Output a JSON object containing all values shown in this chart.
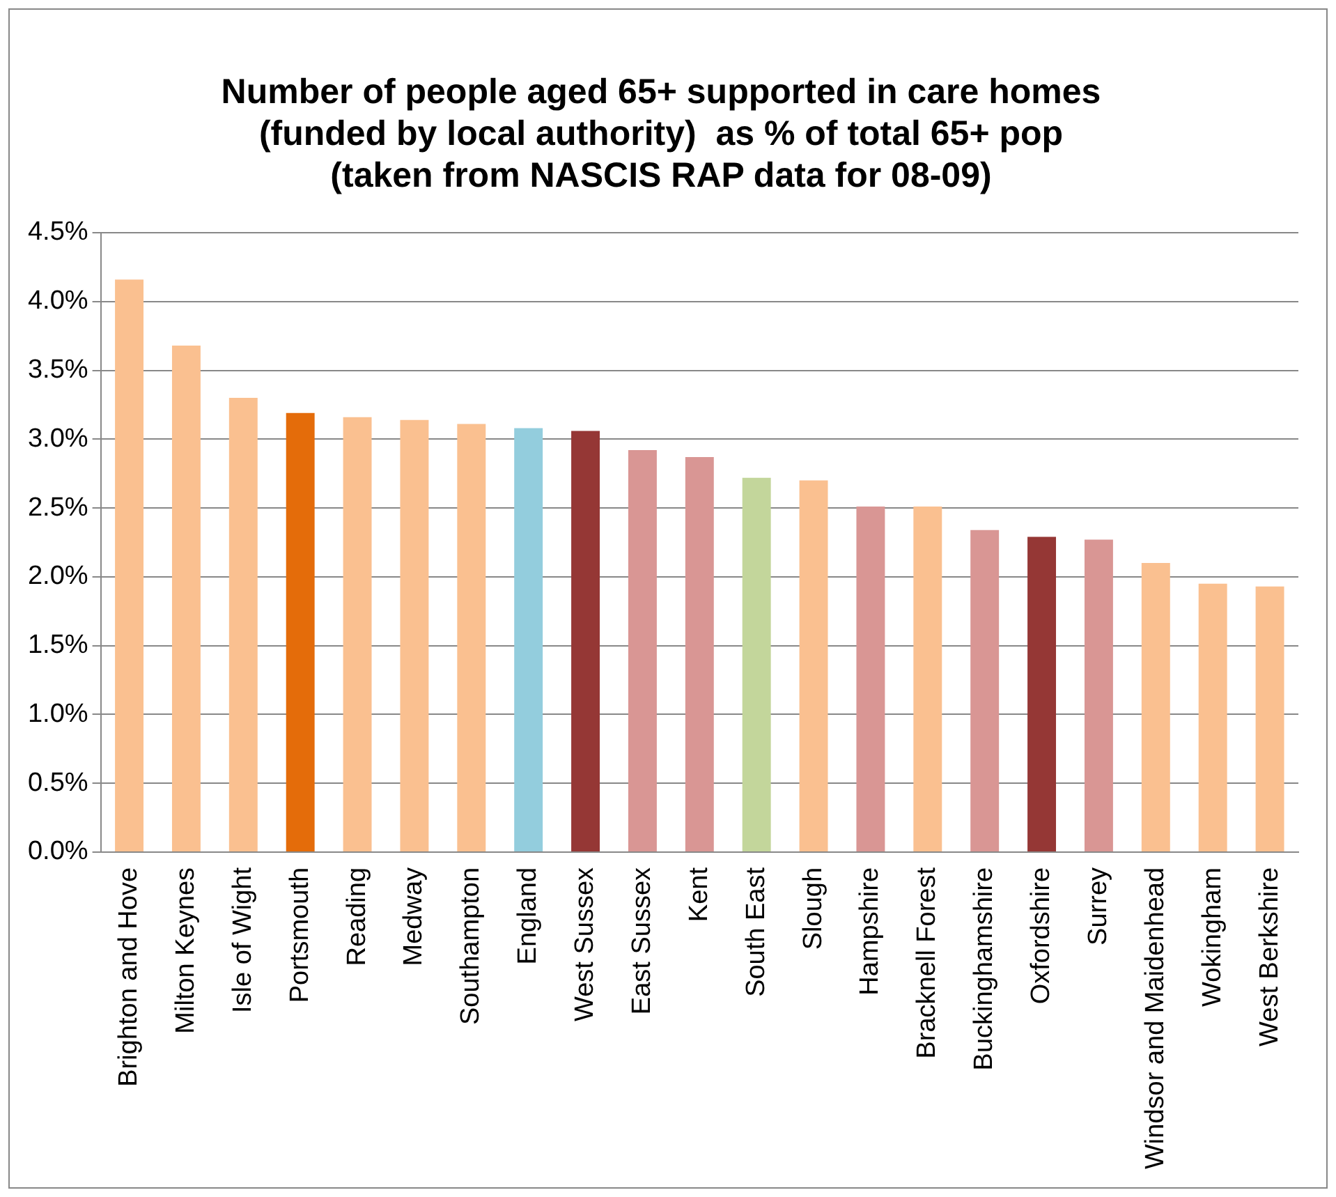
{
  "chart_data": {
    "type": "bar",
    "title": "Number of people aged 65+ supported in care homes\n(funded by local authority)  as % of total 65+ pop\n(taken from NASCIS RAP data for 08-09)",
    "categories": [
      "Brighton and Hove",
      "Milton Keynes",
      "Isle of Wight",
      "Portsmouth",
      "Reading",
      "Medway",
      "Southampton",
      "England",
      "West Sussex",
      "East Sussex",
      "Kent",
      "South East",
      "Slough",
      "Hampshire",
      "Bracknell Forest",
      "Buckinghamshire",
      "Oxfordshire",
      "Surrey",
      "Windsor and Maidenhead",
      "Wokingham",
      "West Berkshire"
    ],
    "values": [
      4.16,
      3.68,
      3.3,
      3.19,
      3.16,
      3.14,
      3.11,
      3.08,
      3.06,
      2.92,
      2.87,
      2.72,
      2.7,
      2.51,
      2.51,
      2.34,
      2.29,
      2.27,
      2.1,
      1.95,
      1.93
    ],
    "colors": [
      "#fac090",
      "#fac090",
      "#fac090",
      "#e46c0a",
      "#fac090",
      "#fac090",
      "#fac090",
      "#93cddd",
      "#953735",
      "#d99694",
      "#d99694",
      "#c3d69b",
      "#fac090",
      "#d99694",
      "#fac090",
      "#d99694",
      "#953735",
      "#d99694",
      "#fac090",
      "#fac090",
      "#fac090"
    ],
    "ylim": [
      0,
      4.5
    ],
    "yticks": [
      {
        "value": 0,
        "label": "0.0%"
      },
      {
        "value": 0.5,
        "label": "0.5%"
      },
      {
        "value": 1,
        "label": "1.0%"
      },
      {
        "value": 1.5,
        "label": "1.5%"
      },
      {
        "value": 2,
        "label": "2.0%"
      },
      {
        "value": 2.5,
        "label": "2.5%"
      },
      {
        "value": 3,
        "label": "3.0%"
      },
      {
        "value": 3.5,
        "label": "3.5%"
      },
      {
        "value": 4,
        "label": "4.0%"
      },
      {
        "value": 4.5,
        "label": "4.5%"
      }
    ],
    "grid": "y"
  }
}
